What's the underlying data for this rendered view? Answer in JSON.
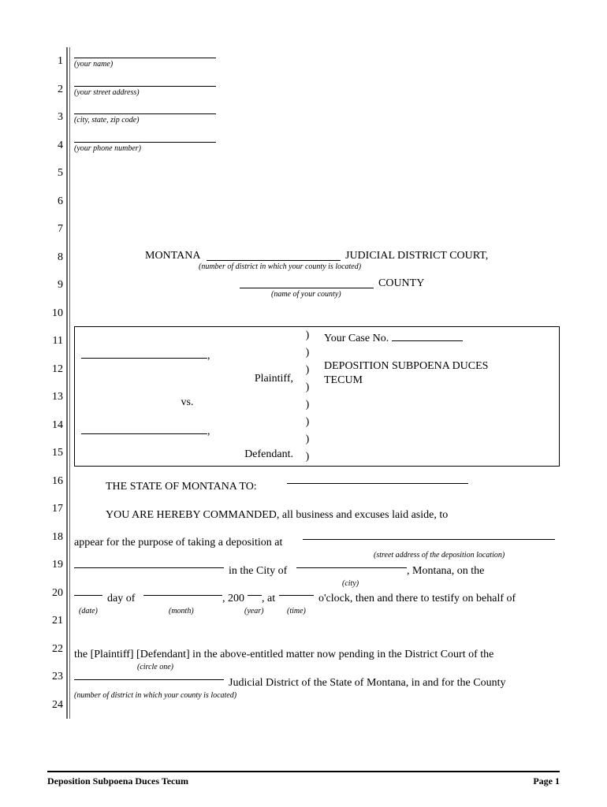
{
  "header_fields": [
    {
      "hint": "(your name)"
    },
    {
      "hint": "(your street address)"
    },
    {
      "hint": "(city, state, zip code)"
    },
    {
      "hint": "(your phone number)"
    }
  ],
  "court": {
    "state": "MONTANA",
    "court_type": "JUDICIAL DISTRICT COURT,",
    "district_hint": "(number of district in which your county is located)",
    "county_label": "COUNTY",
    "county_hint": "(name of your county)"
  },
  "caption": {
    "plaintiff_label": "Plaintiff,",
    "vs": "vs.",
    "defendant_label": "Defendant.",
    "case_no_label": "Your Case No.",
    "doc_title_1": "DEPOSITION SUBPOENA DUCES",
    "doc_title_2": "TECUM"
  },
  "body": {
    "to_line": "THE STATE OF MONTANA TO:",
    "command": "YOU ARE HEREBY COMMANDED, all business and excuses laid aside, to",
    "appear": "appear for the purpose of taking a deposition at",
    "street_hint": "(street address of the deposition location)",
    "in_city": "in the City of",
    "montana_on": ", Montana, on the",
    "city_hint": "(city)",
    "day_of": "day of",
    "date_hint": "(date)",
    "month_hint": "(month)",
    "year_prefix": ", 200",
    "year_hint": "(year)",
    "at": ", at",
    "time_hint": "(time)",
    "oclock": "o'clock, then and there to testify on behalf of",
    "plaintiff_defendant": "the [Plaintiff] [Defendant] in the above-entitled matter now pending in the District Court of the",
    "circle_hint": "(circle one)",
    "judicial_district": "Judicial District of the State of Montana, in and for the County",
    "district_num_hint": "(number of district in which your county is located)"
  },
  "footer": {
    "title": "Deposition Subpoena Duces Tecum",
    "page": "Page 1"
  },
  "line_count": 24,
  "colors": {
    "text": "#000000",
    "rule": "#666666",
    "bg": "#ffffff"
  }
}
